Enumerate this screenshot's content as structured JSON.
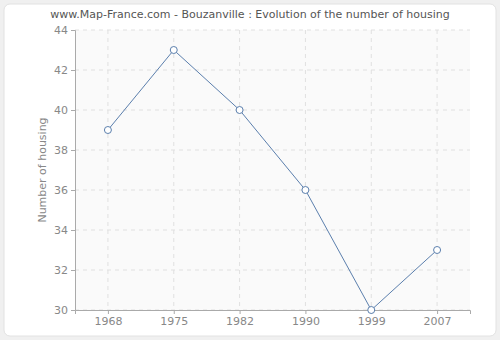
{
  "chart_data": {
    "type": "line",
    "title": "www.Map-France.com - Bouzanville : Evolution of the number of housing",
    "y_label": "Number of housing",
    "categories": [
      "1968",
      "1975",
      "1982",
      "1990",
      "1999",
      "2007"
    ],
    "values": [
      39,
      43,
      40,
      36,
      30,
      33
    ],
    "color": "#5b7fad",
    "ylim": [
      30,
      44
    ],
    "yticks": [
      30,
      32,
      34,
      36,
      38,
      40,
      42,
      44
    ],
    "grid": true,
    "marker": "circle"
  }
}
